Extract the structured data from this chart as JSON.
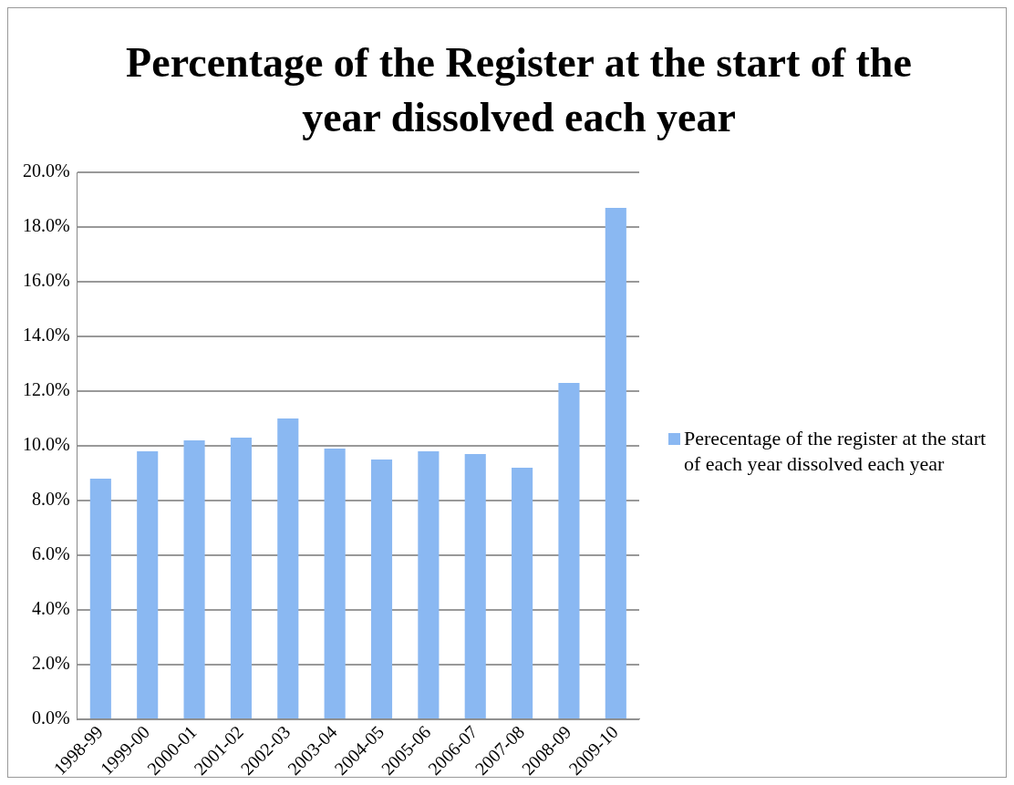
{
  "chart_data": {
    "type": "bar",
    "title": "Percentage of the Register at the start of the year dissolved each year",
    "categories": [
      "1998-99",
      "1999-00",
      "2000-01",
      "2001-02",
      "2002-03",
      "2003-04",
      "2004-05",
      "2005-06",
      "2006-07",
      "2007-08",
      "2008-09",
      "2009-10"
    ],
    "series": [
      {
        "name": "Perecentage of the register at the start of each year dissolved each year",
        "color": "#8ab8f2",
        "values": [
          8.8,
          9.8,
          10.2,
          10.3,
          11.0,
          9.9,
          9.5,
          9.8,
          9.7,
          9.2,
          12.3,
          18.7
        ]
      }
    ],
    "ylim": [
      0,
      20
    ],
    "yticks": [
      {
        "value": 0,
        "label": "0.0%"
      },
      {
        "value": 2,
        "label": "2.0%"
      },
      {
        "value": 4,
        "label": "4.0%"
      },
      {
        "value": 6,
        "label": "6.0%"
      },
      {
        "value": 8,
        "label": "8.0%"
      },
      {
        "value": 10,
        "label": "10.0%"
      },
      {
        "value": 12,
        "label": "12.0%"
      },
      {
        "value": 14,
        "label": "14.0%"
      },
      {
        "value": 16,
        "label": "16.0%"
      },
      {
        "value": 18,
        "label": "18.0%"
      },
      {
        "value": 20,
        "label": "20.0%"
      }
    ],
    "grid": "y",
    "legend": "right"
  }
}
